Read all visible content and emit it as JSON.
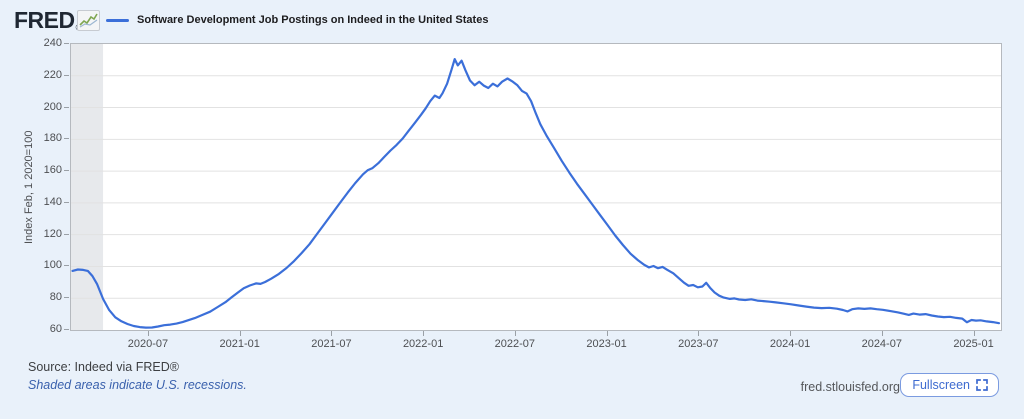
{
  "header": {
    "logo_text": "FRED",
    "reg_mark": "®",
    "series_title": "Software Development Job Postings on Indeed in the United States"
  },
  "footer": {
    "source": "Source: Indeed via FRED®",
    "recession_note": "Shaded areas indicate U.S. recessions.",
    "site": "fred.stlouisfed.org",
    "fullscreen_label": "Fullscreen"
  },
  "chart_data": {
    "type": "line",
    "title": "Software Development Job Postings on Indeed in the United States",
    "ylabel": "Index Feb, 1 2020=100",
    "ylim": [
      60,
      240
    ],
    "yticks": [
      60,
      80,
      100,
      120,
      140,
      160,
      180,
      200,
      220,
      240
    ],
    "x_unit": "months since 2020-02-01",
    "x_span_months": 60.7,
    "xticks": [
      {
        "m": 5,
        "label": "2020-07"
      },
      {
        "m": 11,
        "label": "2021-01"
      },
      {
        "m": 17,
        "label": "2021-07"
      },
      {
        "m": 23,
        "label": "2022-01"
      },
      {
        "m": 29,
        "label": "2022-07"
      },
      {
        "m": 35,
        "label": "2023-01"
      },
      {
        "m": 41,
        "label": "2023-07"
      },
      {
        "m": 47,
        "label": "2024-01"
      },
      {
        "m": 53,
        "label": "2024-07"
      },
      {
        "m": 59,
        "label": "2025-01"
      }
    ],
    "recession_bands": [
      {
        "start_m": 0,
        "end_m": 2
      }
    ],
    "line_color": "#3b6fd9",
    "grid_color": "#e2e2e2",
    "recession_color": "#e7e9ec",
    "legend_position": "top",
    "grid": true,
    "points": [
      [
        0,
        97.2
      ],
      [
        0.35,
        98.1
      ],
      [
        0.7,
        97.8
      ],
      [
        1,
        97.2
      ],
      [
        1.3,
        94
      ],
      [
        1.6,
        89
      ],
      [
        2,
        79.5
      ],
      [
        2.4,
        72.5
      ],
      [
        2.8,
        68
      ],
      [
        3.2,
        65.5
      ],
      [
        3.6,
        63.8
      ],
      [
        4,
        62.5
      ],
      [
        4.4,
        61.8
      ],
      [
        4.8,
        61.5
      ],
      [
        5.2,
        61.6
      ],
      [
        5.6,
        62.2
      ],
      [
        6,
        63
      ],
      [
        6.4,
        63.4
      ],
      [
        6.8,
        64
      ],
      [
        7.2,
        65
      ],
      [
        7.6,
        66.2
      ],
      [
        8,
        67.5
      ],
      [
        8.5,
        69.5
      ],
      [
        9,
        71.5
      ],
      [
        9.5,
        74.5
      ],
      [
        10,
        77.5
      ],
      [
        10.4,
        80.5
      ],
      [
        10.8,
        83.5
      ],
      [
        11.2,
        86.3
      ],
      [
        11.6,
        88
      ],
      [
        12,
        89.3
      ],
      [
        12.3,
        89
      ],
      [
        12.6,
        90.2
      ],
      [
        13,
        92.3
      ],
      [
        13.5,
        95.3
      ],
      [
        14,
        99
      ],
      [
        14.5,
        103.5
      ],
      [
        15,
        108.5
      ],
      [
        15.5,
        114
      ],
      [
        16,
        120.5
      ],
      [
        16.5,
        127
      ],
      [
        17,
        133.5
      ],
      [
        17.5,
        140
      ],
      [
        18,
        146.5
      ],
      [
        18.5,
        152.5
      ],
      [
        19,
        158
      ],
      [
        19.3,
        160.5
      ],
      [
        19.6,
        161.8
      ],
      [
        20,
        165
      ],
      [
        20.4,
        169
      ],
      [
        20.8,
        173
      ],
      [
        21.2,
        176.5
      ],
      [
        21.6,
        180.5
      ],
      [
        22,
        185.5
      ],
      [
        22.4,
        190.5
      ],
      [
        22.8,
        195.5
      ],
      [
        23.1,
        199.5
      ],
      [
        23.4,
        204
      ],
      [
        23.7,
        207.5
      ],
      [
        24,
        206
      ],
      [
        24.2,
        209
      ],
      [
        24.5,
        215
      ],
      [
        24.8,
        224
      ],
      [
        25,
        230.5
      ],
      [
        25.2,
        226.5
      ],
      [
        25.45,
        229.5
      ],
      [
        25.7,
        223.5
      ],
      [
        26,
        217
      ],
      [
        26.3,
        214
      ],
      [
        26.6,
        216.3
      ],
      [
        26.9,
        213.8
      ],
      [
        27.2,
        212.3
      ],
      [
        27.5,
        215
      ],
      [
        27.8,
        213.3
      ],
      [
        28.1,
        216.3
      ],
      [
        28.45,
        218.3
      ],
      [
        28.8,
        216.3
      ],
      [
        29.1,
        214
      ],
      [
        29.4,
        210.5
      ],
      [
        29.7,
        208.8
      ],
      [
        30,
        204
      ],
      [
        30.3,
        196.5
      ],
      [
        30.6,
        189.5
      ],
      [
        31,
        182.5
      ],
      [
        31.5,
        174.5
      ],
      [
        32,
        166.5
      ],
      [
        32.5,
        159
      ],
      [
        33,
        152
      ],
      [
        33.5,
        145.5
      ],
      [
        34,
        139
      ],
      [
        34.5,
        132.5
      ],
      [
        35,
        126
      ],
      [
        35.5,
        119.5
      ],
      [
        36,
        113.5
      ],
      [
        36.5,
        108
      ],
      [
        37,
        103.8
      ],
      [
        37.4,
        101
      ],
      [
        37.7,
        99.4
      ],
      [
        38,
        100.3
      ],
      [
        38.3,
        98.9
      ],
      [
        38.6,
        99.7
      ],
      [
        38.9,
        97.9
      ],
      [
        39.3,
        95.7
      ],
      [
        39.7,
        92.3
      ],
      [
        40,
        89.8
      ],
      [
        40.3,
        87.8
      ],
      [
        40.6,
        88.3
      ],
      [
        40.9,
        86.9
      ],
      [
        41.2,
        87.4
      ],
      [
        41.45,
        89.7
      ],
      [
        41.7,
        86.6
      ],
      [
        42,
        83.6
      ],
      [
        42.3,
        81.6
      ],
      [
        42.6,
        80.4
      ],
      [
        43,
        79.6
      ],
      [
        43.3,
        79.9
      ],
      [
        43.6,
        79.2
      ],
      [
        44,
        78.9
      ],
      [
        44.4,
        79.3
      ],
      [
        44.8,
        78.5
      ],
      [
        45.2,
        78.2
      ],
      [
        45.6,
        77.8
      ],
      [
        46,
        77.4
      ],
      [
        46.5,
        76.8
      ],
      [
        47,
        76.2
      ],
      [
        47.5,
        75.4
      ],
      [
        48,
        74.7
      ],
      [
        48.5,
        74.1
      ],
      [
        49,
        73.8
      ],
      [
        49.5,
        74
      ],
      [
        50,
        73.4
      ],
      [
        50.4,
        72.6
      ],
      [
        50.7,
        71.7
      ],
      [
        51,
        73.1
      ],
      [
        51.4,
        73.6
      ],
      [
        51.8,
        73.3
      ],
      [
        52.2,
        73.6
      ],
      [
        52.6,
        73.1
      ],
      [
        53,
        72.7
      ],
      [
        53.5,
        71.9
      ],
      [
        54,
        71.1
      ],
      [
        54.4,
        70.2
      ],
      [
        54.7,
        69.5
      ],
      [
        55,
        70.3
      ],
      [
        55.4,
        69.7
      ],
      [
        55.8,
        70
      ],
      [
        56.2,
        69.1
      ],
      [
        56.6,
        68.5
      ],
      [
        57,
        68.1
      ],
      [
        57.4,
        68.3
      ],
      [
        57.8,
        67.6
      ],
      [
        58.2,
        67.2
      ],
      [
        58.5,
        64.9
      ],
      [
        58.8,
        66.3
      ],
      [
        59.1,
        65.9
      ],
      [
        59.4,
        66.1
      ],
      [
        59.8,
        65.4
      ],
      [
        60.2,
        65
      ],
      [
        60.6,
        64.3
      ]
    ]
  }
}
